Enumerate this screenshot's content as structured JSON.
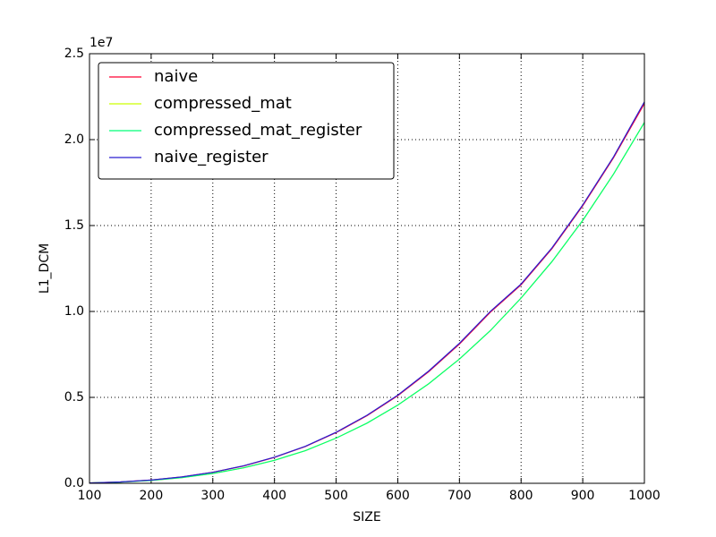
{
  "chart_data": {
    "type": "line",
    "x_label": "SIZE",
    "y_label": "L1_DCM",
    "y_offset_label": "1e7",
    "x": [
      100,
      150,
      200,
      250,
      300,
      350,
      400,
      450,
      500,
      550,
      600,
      650,
      700,
      750,
      800,
      850,
      900,
      950,
      1000
    ],
    "series": [
      {
        "name": "naive",
        "color": "#ff0033",
        "values": [
          0.002,
          0.008,
          0.019,
          0.037,
          0.064,
          0.101,
          0.151,
          0.214,
          0.295,
          0.393,
          0.51,
          0.649,
          0.81,
          0.995,
          1.155,
          1.365,
          1.615,
          1.895,
          2.21
        ]
      },
      {
        "name": "compressed_mat",
        "color": "#ccff00",
        "values": [
          0.002,
          0.007,
          0.017,
          0.033,
          0.057,
          0.09,
          0.134,
          0.19,
          0.263,
          0.35,
          0.455,
          0.579,
          0.723,
          0.888,
          1.078,
          1.29,
          1.53,
          1.8,
          2.1
        ]
      },
      {
        "name": "compressed_mat_register",
        "color": "#00ff77",
        "values": [
          0.002,
          0.007,
          0.017,
          0.033,
          0.057,
          0.09,
          0.134,
          0.19,
          0.263,
          0.35,
          0.455,
          0.579,
          0.723,
          0.888,
          1.078,
          1.29,
          1.53,
          1.8,
          2.1
        ]
      },
      {
        "name": "naive_register",
        "color": "#2a1fd0",
        "values": [
          0.002,
          0.008,
          0.019,
          0.037,
          0.064,
          0.102,
          0.152,
          0.215,
          0.297,
          0.396,
          0.513,
          0.653,
          0.815,
          1.0,
          1.16,
          1.37,
          1.62,
          1.9,
          2.22
        ]
      }
    ],
    "xlim": [
      100,
      1000
    ],
    "xticks": [
      100,
      200,
      300,
      400,
      500,
      600,
      700,
      800,
      900,
      1000
    ],
    "ylim": [
      0,
      2.5
    ],
    "yticks": [
      {
        "value": 0,
        "label": "0.0"
      },
      {
        "value": 0.5,
        "label": "0.5"
      },
      {
        "value": 1,
        "label": "1.0"
      },
      {
        "value": 1.5,
        "label": "1.5"
      },
      {
        "value": 2,
        "label": "2.0"
      },
      {
        "value": 2.5,
        "label": "2.5"
      }
    ],
    "grid": true,
    "legend": "upper-left"
  }
}
